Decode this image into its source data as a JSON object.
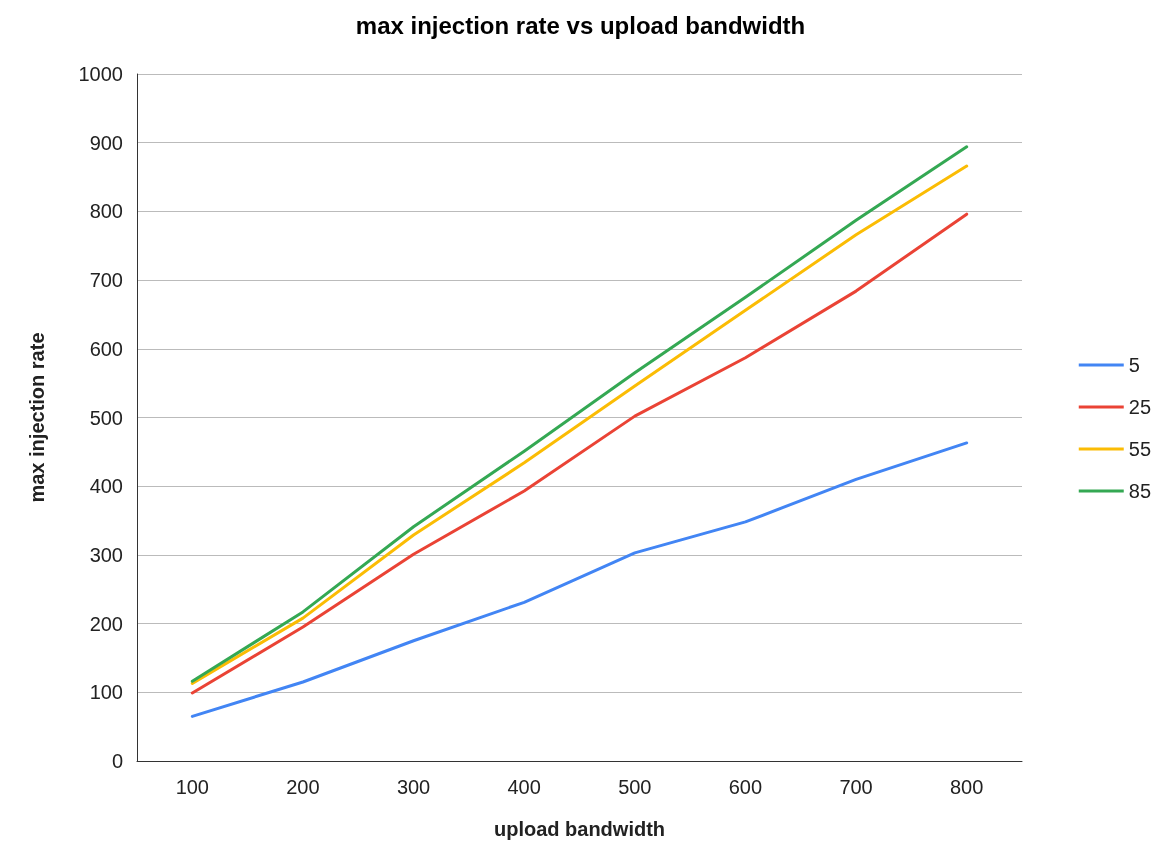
{
  "chart_data": {
    "type": "line",
    "title": "max injection rate vs upload bandwidth",
    "xlabel": "upload bandwidth",
    "ylabel": "max injection rate",
    "categories": [
      "100",
      "200",
      "300",
      "400",
      "500",
      "600",
      "700",
      "800"
    ],
    "series": [
      {
        "name": "5",
        "color": "#4285f4",
        "values": [
          65,
          115,
          175,
          231,
          303,
          348,
          410,
          463
        ]
      },
      {
        "name": "25",
        "color": "#ea4335",
        "values": [
          99,
          195,
          301,
          393,
          502,
          587,
          684,
          796
        ]
      },
      {
        "name": "55",
        "color": "#fbbc04",
        "values": [
          113,
          208,
          329,
          434,
          546,
          656,
          766,
          866
        ]
      },
      {
        "name": "85",
        "color": "#34a853",
        "values": [
          116,
          217,
          341,
          451,
          565,
          675,
          787,
          894
        ]
      }
    ],
    "ylim": [
      0,
      1000
    ],
    "yticks": [
      0,
      100,
      200,
      300,
      400,
      500,
      600,
      700,
      800,
      900,
      1000
    ],
    "grid": "y",
    "legend": "right",
    "marker": "none",
    "line_style": "solid"
  }
}
